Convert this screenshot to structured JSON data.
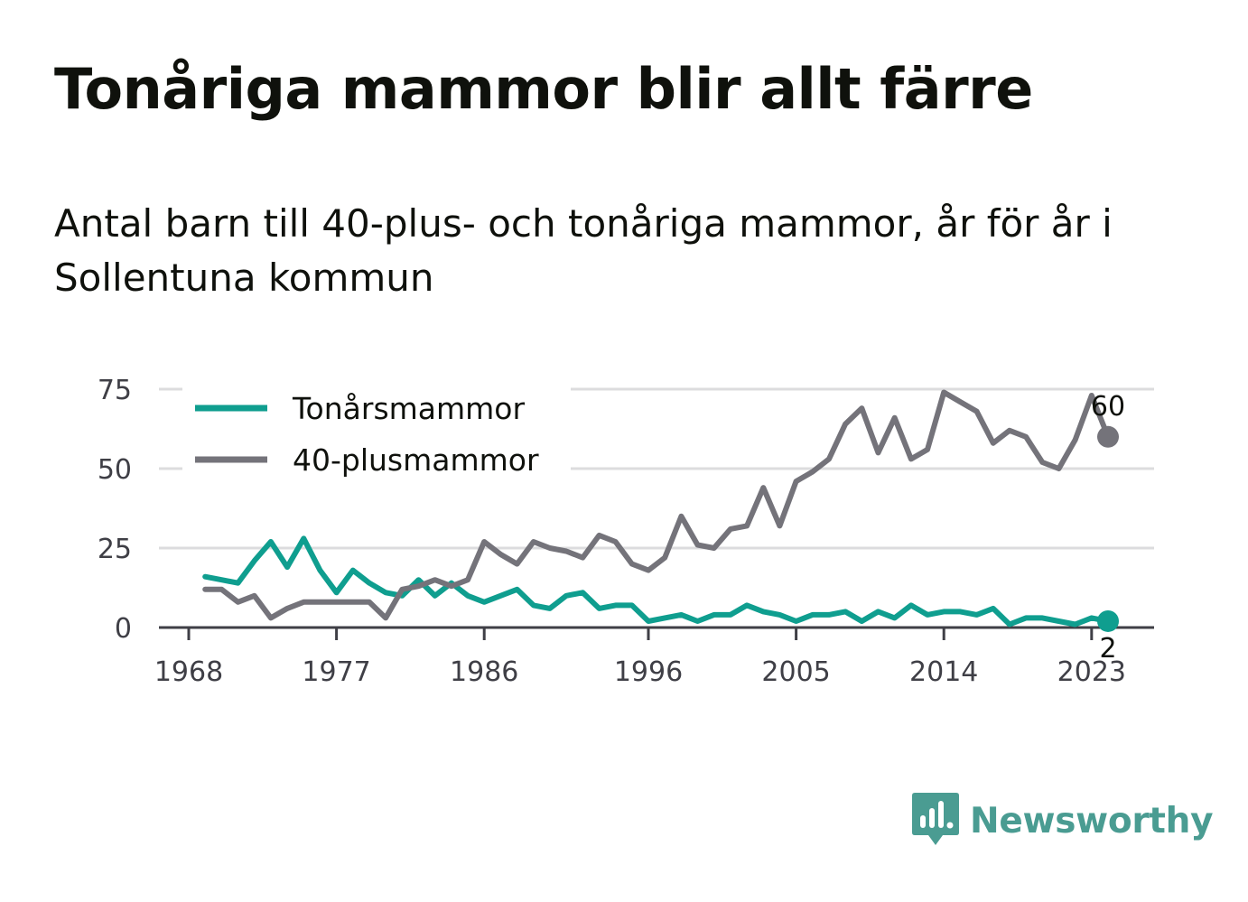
{
  "title": "Tonåriga mammor blir allt färre",
  "subtitle": "Antal barn till 40-plus- och tonåriga mammor, år för år i Sollentuna kommun",
  "brand": {
    "name": "Newsworthy",
    "icon": "newsworthy-logo-icon",
    "color": "#4a9c92"
  },
  "chart_data": {
    "type": "line",
    "x": [
      1969,
      1970,
      1971,
      1972,
      1973,
      1974,
      1975,
      1976,
      1977,
      1978,
      1979,
      1980,
      1981,
      1982,
      1983,
      1984,
      1985,
      1986,
      1987,
      1988,
      1989,
      1990,
      1991,
      1992,
      1993,
      1994,
      1995,
      1996,
      1997,
      1998,
      1999,
      2000,
      2001,
      2002,
      2003,
      2004,
      2005,
      2006,
      2007,
      2008,
      2009,
      2010,
      2011,
      2012,
      2013,
      2014,
      2015,
      2016,
      2017,
      2018,
      2019,
      2020,
      2021,
      2022,
      2023,
      2024
    ],
    "series": [
      {
        "name": "Tonårsmammor",
        "color": "#0f9e8f",
        "values": [
          16,
          15,
          14,
          21,
          27,
          19,
          28,
          18,
          11,
          18,
          14,
          11,
          10,
          15,
          10,
          14,
          10,
          8,
          10,
          12,
          7,
          6,
          10,
          11,
          6,
          7,
          7,
          2,
          3,
          4,
          2,
          4,
          4,
          7,
          5,
          4,
          2,
          4,
          4,
          5,
          2,
          5,
          3,
          7,
          4,
          5,
          5,
          4,
          6,
          1,
          3,
          3,
          2,
          1,
          3,
          2
        ],
        "end_label": "2"
      },
      {
        "name": "40-plusmammor",
        "color": "#74737a",
        "values": [
          12,
          12,
          8,
          10,
          3,
          6,
          8,
          8,
          8,
          8,
          8,
          3,
          12,
          13,
          15,
          13,
          15,
          27,
          23,
          20,
          27,
          25,
          24,
          22,
          29,
          27,
          20,
          18,
          22,
          35,
          26,
          25,
          31,
          32,
          44,
          32,
          46,
          49,
          53,
          64,
          69,
          55,
          66,
          53,
          56,
          74,
          71,
          68,
          58,
          62,
          60,
          52,
          50,
          59,
          73,
          60
        ],
        "end_label": "60"
      }
    ],
    "x_ticks": [
      "1968",
      "1977",
      "1986",
      "1996",
      "2005",
      "2014",
      "2023"
    ],
    "y_ticks": [
      "0",
      "25",
      "50",
      "75"
    ],
    "ylim": [
      0,
      75
    ],
    "xlim": [
      1968,
      2026
    ],
    "grid": true,
    "legend": "top-left"
  }
}
